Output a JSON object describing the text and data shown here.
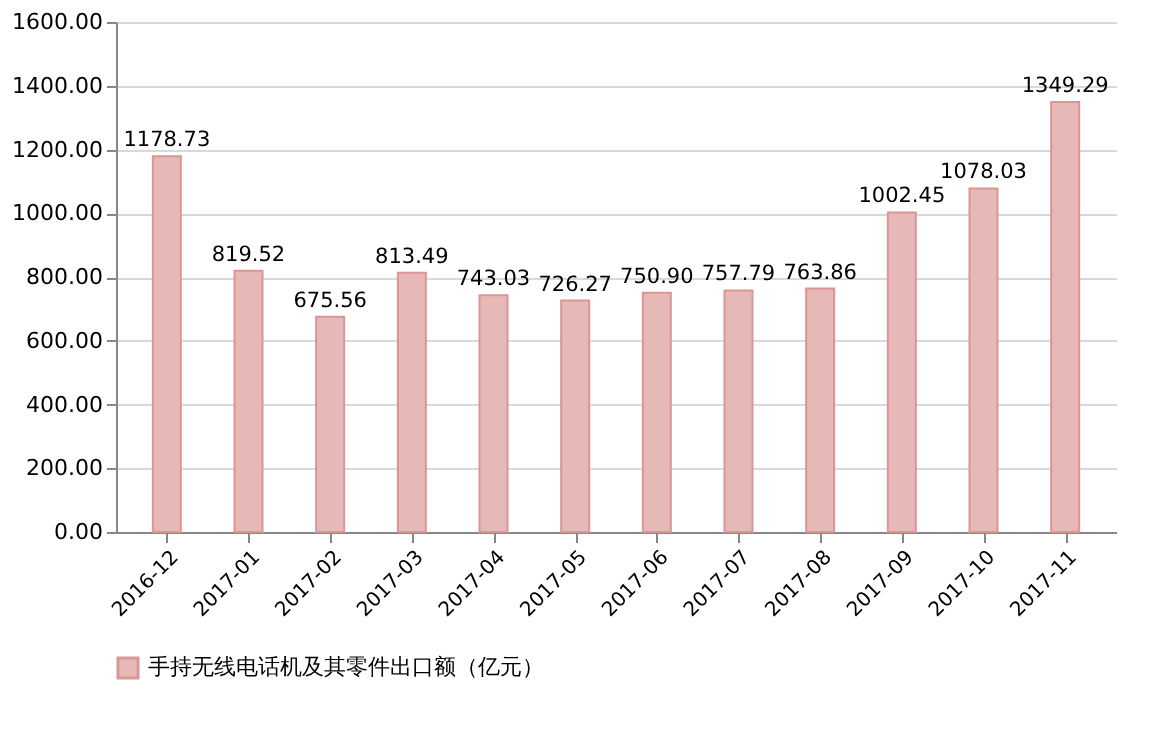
{
  "chart_data": {
    "type": "bar",
    "categories": [
      "2016-12",
      "2017-01",
      "2017-02",
      "2017-03",
      "2017-04",
      "2017-05",
      "2017-06",
      "2017-07",
      "2017-08",
      "2017-09",
      "2017-10",
      "2017-11"
    ],
    "series": [
      {
        "name": "手持无线电话机及其零件出口额（亿元）",
        "color": "#e6b8b7",
        "values": [
          1178.73,
          819.52,
          675.56,
          813.49,
          743.03,
          726.27,
          750.9,
          757.79,
          763.86,
          1002.45,
          1078.03,
          1349.29
        ],
        "value_labels": [
          "1178.73",
          "819.52",
          "675.56",
          "813.49",
          "743.03",
          "726.27",
          "750.90",
          "757.79",
          "763.86",
          "1002.45",
          "1078.03",
          "1349.29"
        ]
      }
    ],
    "ylim": [
      0,
      1600
    ],
    "yticks": [
      {
        "value": 0,
        "label": "0.00"
      },
      {
        "value": 200,
        "label": "200.00"
      },
      {
        "value": 400,
        "label": "400.00"
      },
      {
        "value": 600,
        "label": "600.00"
      },
      {
        "value": 800,
        "label": "800.00"
      },
      {
        "value": 1000,
        "label": "1000.00"
      },
      {
        "value": 1200,
        "label": "1200.00"
      },
      {
        "value": 1400,
        "label": "1400.00"
      },
      {
        "value": 1600,
        "label": "1600.00"
      }
    ],
    "grid": "y",
    "legend": "bottom left"
  }
}
